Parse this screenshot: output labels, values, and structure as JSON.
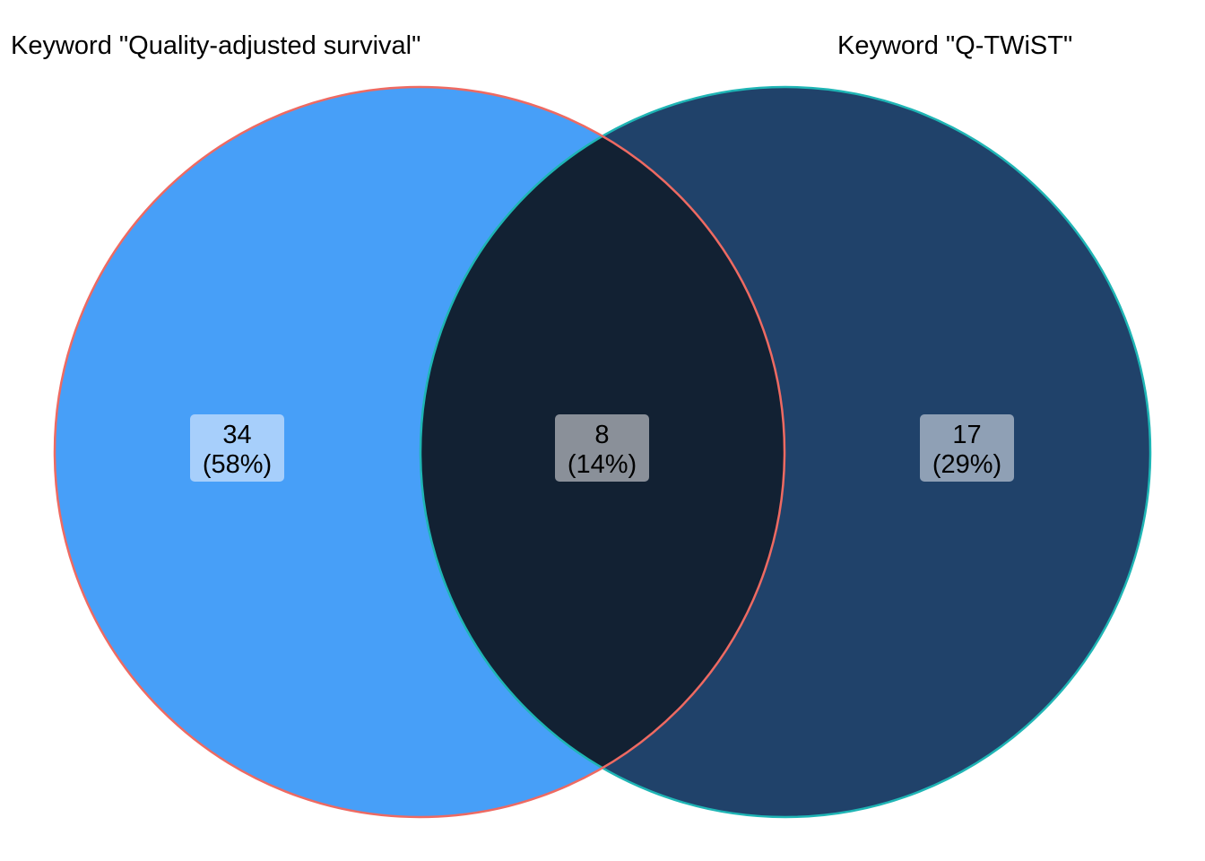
{
  "sets": [
    {
      "name": "Keyword \"Quality-adjusted survival\"",
      "fill": "#479ff8",
      "stroke": "#ee6a62"
    },
    {
      "name": "Keyword \"Q-TWiST\"",
      "fill": "#20426a",
      "stroke": "#1fb5b5"
    }
  ],
  "regions": {
    "left_only": {
      "count": "34",
      "percent": "(58%)",
      "label_bg": "#a7cffb"
    },
    "intersection": {
      "count": "8",
      "percent": "(14%)",
      "label_bg": "#8a9099",
      "fill": "#122133"
    },
    "right_only": {
      "count": "17",
      "percent": "(29%)",
      "label_bg": "#8fa0b5"
    }
  }
}
